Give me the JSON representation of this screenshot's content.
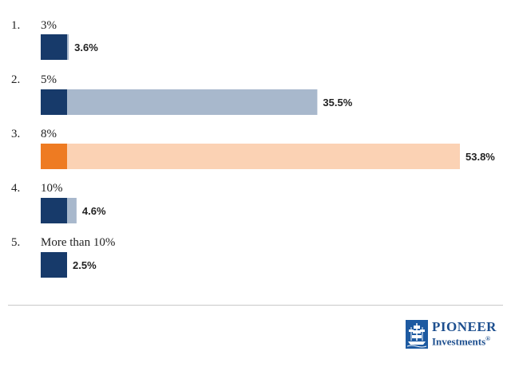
{
  "chart_data": {
    "type": "bar",
    "orientation": "horizontal",
    "categories": [
      "3%",
      "5%",
      "8%",
      "10%",
      "More than 10%"
    ],
    "option_numbers": [
      "1.",
      "2.",
      "3.",
      "4.",
      "5."
    ],
    "values": [
      3.6,
      35.5,
      53.8,
      4.6,
      2.5
    ],
    "value_labels": [
      "3.6%",
      "35.5%",
      "53.8%",
      "4.6%",
      "2.5%"
    ],
    "highlight_index": 2,
    "colors": {
      "marker": "#173a6a",
      "bar": "#a8b8cc",
      "highlight_marker": "#ee7b22",
      "highlight_bar": "#fbd2b4"
    }
  },
  "brand": {
    "line1": "PIONEER",
    "line2": "Investments",
    "mark": "®",
    "icon": "ship-icon",
    "color": "#1d5aa1"
  }
}
